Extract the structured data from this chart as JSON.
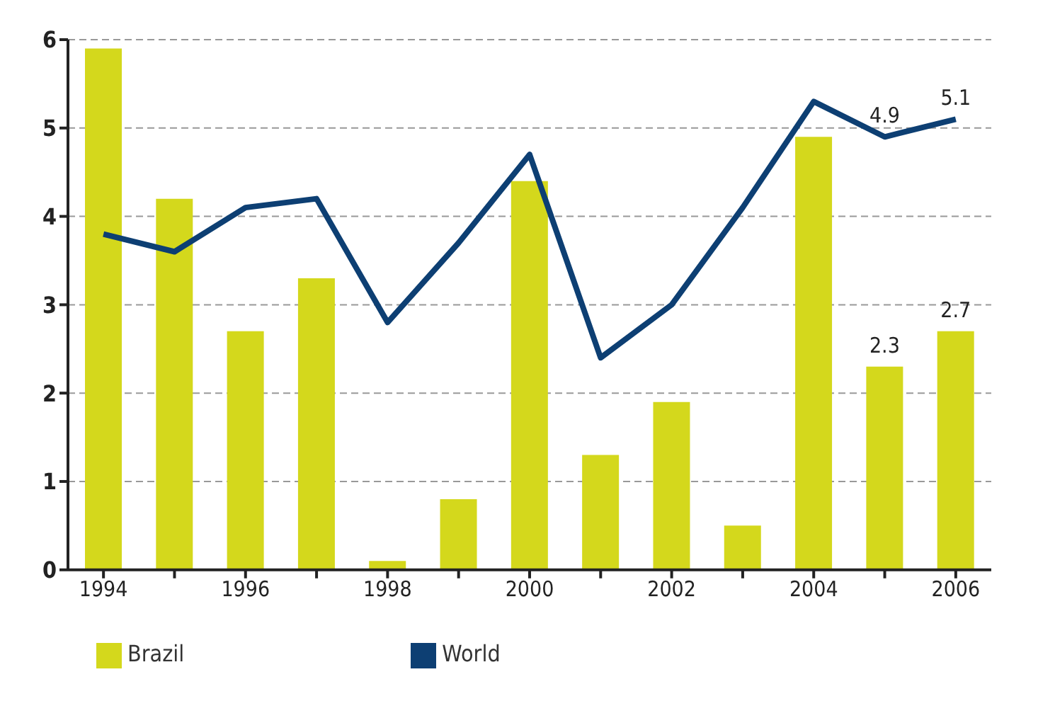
{
  "chart_data": {
    "type": "bar",
    "categories": [
      "1994",
      null,
      "1996",
      null,
      "1998",
      null,
      "2000",
      null,
      "2002",
      null,
      "2004",
      null,
      "2006"
    ],
    "series": [
      {
        "name": "Brazil",
        "color": "#d4d81c",
        "values": [
          5.9,
          4.2,
          2.7,
          3.3,
          0.1,
          0.8,
          4.4,
          1.3,
          1.9,
          0.5,
          4.9,
          2.3,
          2.7
        ],
        "value_labels": [
          null,
          null,
          null,
          null,
          null,
          null,
          null,
          null,
          null,
          null,
          null,
          "2.3",
          "2.7"
        ]
      },
      {
        "name": "World",
        "type": "line",
        "color": "#0d3f73",
        "values": [
          3.8,
          3.6,
          4.1,
          4.2,
          2.8,
          3.7,
          4.7,
          2.4,
          3.0,
          4.1,
          5.3,
          4.9,
          5.1
        ],
        "value_labels": [
          null,
          null,
          null,
          null,
          null,
          null,
          null,
          null,
          null,
          null,
          null,
          "4.9",
          "5.1"
        ]
      }
    ],
    "ylim": [
      0,
      6
    ],
    "yticks": [
      0,
      1,
      2,
      3,
      4,
      5,
      6
    ],
    "grid": "y",
    "legend": "bottom left",
    "marker": "none",
    "line_style": "solid"
  }
}
